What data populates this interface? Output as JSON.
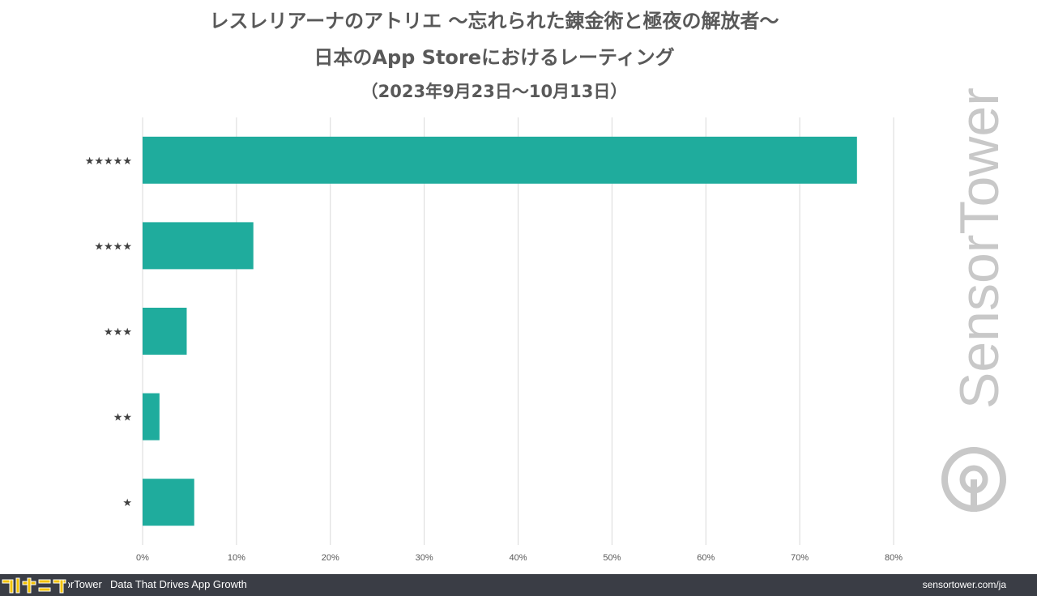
{
  "chart_data": {
    "type": "bar",
    "orientation": "horizontal",
    "title": "レスレリアーナのアトリエ 〜忘れられた錬金術と極夜の解放者〜",
    "subtitle": "日本のApp Storeにおけるレーティング",
    "date_range": "（2023年9月23日〜10月13日）",
    "categories": [
      "★★★★★",
      "★★★★",
      "★★★",
      "★★",
      "★"
    ],
    "values": [
      76.1,
      11.8,
      4.7,
      1.8,
      5.5
    ],
    "xlim": [
      0,
      80
    ],
    "x_ticks": [
      "0%",
      "10%",
      "20%",
      "30%",
      "40%",
      "50%",
      "60%",
      "70%",
      "80%"
    ],
    "x_tick_values": [
      0,
      10,
      20,
      30,
      40,
      50,
      60,
      70,
      80
    ],
    "grid": true,
    "bar_color": "#1fac9d",
    "grid_color": "#d9d9d9"
  },
  "watermark": {
    "text": "SensorTower",
    "color": "#c8c8c8"
  },
  "footer": {
    "brand": "SensorTower",
    "tagline": "Data That Drives App Growth",
    "url": "sensortower.com/ja",
    "background": "#3a3d45"
  }
}
